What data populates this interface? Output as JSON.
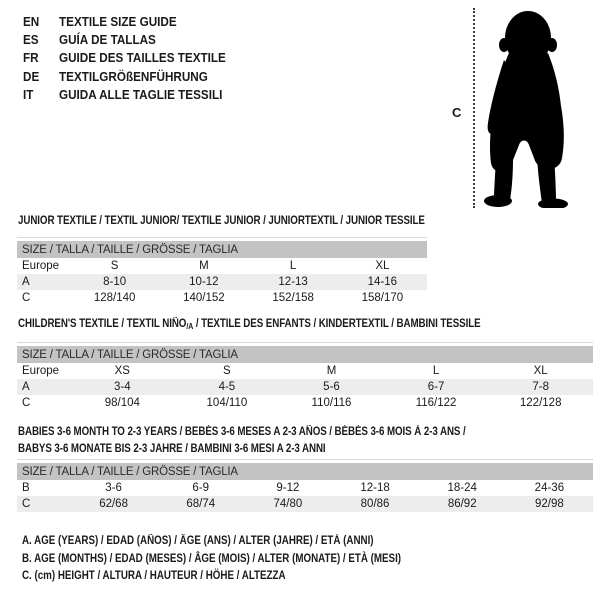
{
  "header": {
    "languages": [
      {
        "code": "EN",
        "label": "TEXTILE SIZE GUIDE"
      },
      {
        "code": "ES",
        "label": "GUÍA DE TALLAS"
      },
      {
        "code": "FR",
        "label": "GUIDE DES TAILLES TEXTILE"
      },
      {
        "code": "DE",
        "label": "TEXTILGRÖßENFÜHRUNG"
      },
      {
        "code": "IT",
        "label": "GUIDA ALLE TAGLIE TESSILI"
      }
    ]
  },
  "figure": {
    "measure_label": "C"
  },
  "sections": {
    "junior": {
      "title": "JUNIOR TEXTILE / TEXTIL JUNIOR/ TEXTILE JUNIOR / JUNIORTEXTIL / JUNIOR TESSILE",
      "table_header": "SIZE / TALLA / TAILLE / GRÖSSE / TAGLIA",
      "rows": [
        {
          "label": "Europe",
          "values": [
            "S",
            "M",
            "L",
            "XL"
          ],
          "striped": false
        },
        {
          "label": "A",
          "values": [
            "8-10",
            "10-12",
            "12-13",
            "14-16"
          ],
          "striped": true
        },
        {
          "label": "C",
          "values": [
            "128/140",
            "140/152",
            "152/158",
            "158/170"
          ],
          "striped": false
        }
      ]
    },
    "children": {
      "title_pre": "CHILDREN'S TEXTILE / TEXTIL NIÑO",
      "title_sub": "/A",
      "title_post": " / TEXTILE DES ENFANTS / KINDERTEXTIL / BAMBINI TESSILE",
      "table_header": "SIZE / TALLA / TAILLE / GRÖSSE / TAGLIA",
      "rows": [
        {
          "label": "Europe",
          "values": [
            "XS",
            "S",
            "M",
            "L",
            "XL"
          ],
          "striped": false
        },
        {
          "label": "A",
          "values": [
            "3-4",
            "4-5",
            "5-6",
            "6-7",
            "7-8"
          ],
          "striped": true
        },
        {
          "label": "C",
          "values": [
            "98/104",
            "104/110",
            "110/116",
            "116/122",
            "122/128"
          ],
          "striped": false
        }
      ]
    },
    "babies": {
      "title_line1": "BABIES 3-6 MONTH TO 2-3 YEARS / BEBÉS 3-6 MESES A 2-3 AÑOS / BÉBÉS 3-6 MOIS À 2-3 ANS /",
      "title_line2": "BABYS 3-6 MONATE BIS 2-3 JAHRE / BAMBINI 3-6 MESI A 2-3 ANNI",
      "table_header": "SIZE / TALLA / TAILLE / GRÖSSE / TAGLIA",
      "rows": [
        {
          "label": "B",
          "values": [
            "3-6",
            "6-9",
            "9-12",
            "12-18",
            "18-24",
            "24-36"
          ],
          "striped": false
        },
        {
          "label": "C",
          "values": [
            "62/68",
            "68/74",
            "74/80",
            "80/86",
            "86/92",
            "92/98"
          ],
          "striped": true
        }
      ]
    }
  },
  "footnotes": {
    "a": "A. AGE (YEARS) / EDAD (AÑOS) / ÂGE (ANS) / ALTER (JAHRE) / ETÀ (ANNI)",
    "b": "B. AGE (MONTHS) / EDAD (MESES) / ÂGE (MOIS) / ALTER (MONATE) / ETÀ (MESI)",
    "c": "C. (cm) HEIGHT / ALTURA / HAUTEUR / HÖHE / ALTEZZA"
  },
  "colors": {
    "table_header_bg": "#c3c3c3",
    "row_stripe_bg": "#ededed",
    "silhouette": "#000000"
  }
}
